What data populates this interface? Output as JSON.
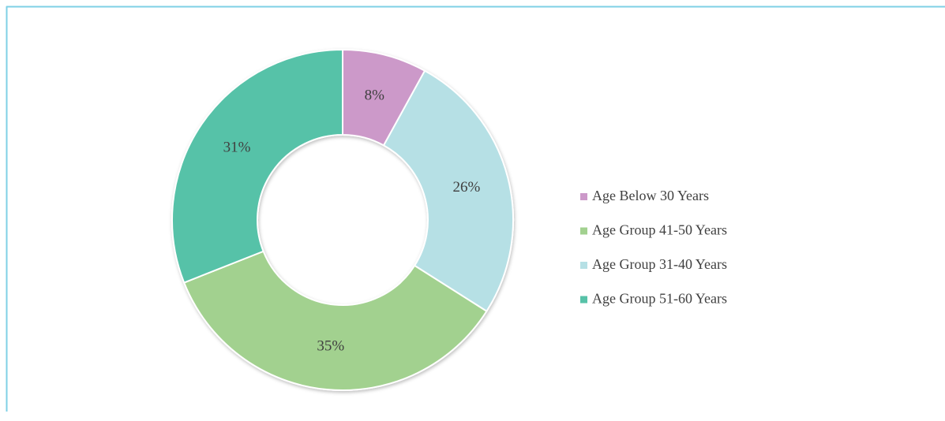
{
  "chart_data": {
    "type": "donut",
    "values": [
      8,
      26,
      35,
      31
    ],
    "value_labels": [
      "8%",
      "26%",
      "35%",
      "31%"
    ],
    "colors": [
      "#cc99c9",
      "#b6e0e5",
      "#a2d18f",
      "#57c2a8"
    ],
    "legend": [
      {
        "name": "Age Below 30 Years",
        "color": "#cc99c9"
      },
      {
        "name": "Age Group 41-50 Years",
        "color": "#a2d18f"
      },
      {
        "name": "Age Group 31-40 Years",
        "color": "#b6e0e5"
      },
      {
        "name": "Age Group 51-60 Years",
        "color": "#57c2a8"
      }
    ]
  }
}
